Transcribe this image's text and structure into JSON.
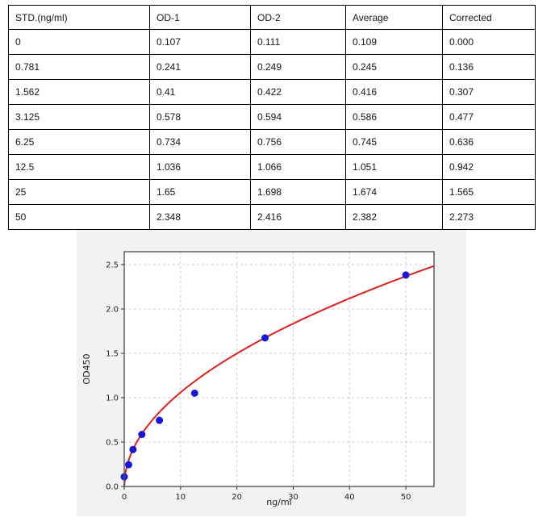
{
  "table": {
    "headers": [
      "STD.(ng/ml)",
      "OD-1",
      "OD-2",
      "Average",
      "Corrected"
    ],
    "rows": [
      [
        "0",
        "0.107",
        "0.111",
        "0.109",
        "0.000"
      ],
      [
        "0.781",
        "0.241",
        "0.249",
        "0.245",
        "0.136"
      ],
      [
        "1.562",
        "0.41",
        "0.422",
        "0.416",
        "0.307"
      ],
      [
        "3.125",
        "0.578",
        "0.594",
        "0.586",
        "0.477"
      ],
      [
        "6.25",
        "0.734",
        "0.756",
        "0.745",
        "0.636"
      ],
      [
        "12.5",
        "1.036",
        "1.066",
        "1.051",
        "0.942"
      ],
      [
        "25",
        "1.65",
        "1.698",
        "1.674",
        "1.565"
      ],
      [
        "50",
        "2.348",
        "2.416",
        "2.382",
        "2.273"
      ]
    ]
  },
  "chart_data": {
    "type": "scatter",
    "x": [
      0,
      0.781,
      1.562,
      3.125,
      6.25,
      12.5,
      25,
      50
    ],
    "y": [
      0.109,
      0.245,
      0.416,
      0.586,
      0.745,
      1.051,
      1.674,
      2.382
    ],
    "title": "",
    "xlabel": "ng/ml",
    "ylabel": "OD450",
    "xlim": [
      0,
      55
    ],
    "ylim": [
      0,
      2.645
    ],
    "xticks": [
      0,
      10,
      20,
      30,
      40,
      50
    ],
    "yticks": [
      0.0,
      0.5,
      1.0,
      1.5,
      2.0,
      2.5
    ],
    "grid": "dashed",
    "legend": "none",
    "fit_curve": {
      "type": "power",
      "a": 0.335,
      "b": 0.5
    },
    "colors": {
      "point": "#1616dd",
      "curve": "#e01f1f",
      "grid": "#cccccc",
      "spine": "#555555",
      "figure_bg": "#f2f2f2",
      "plot_bg": "#ffffff"
    }
  }
}
